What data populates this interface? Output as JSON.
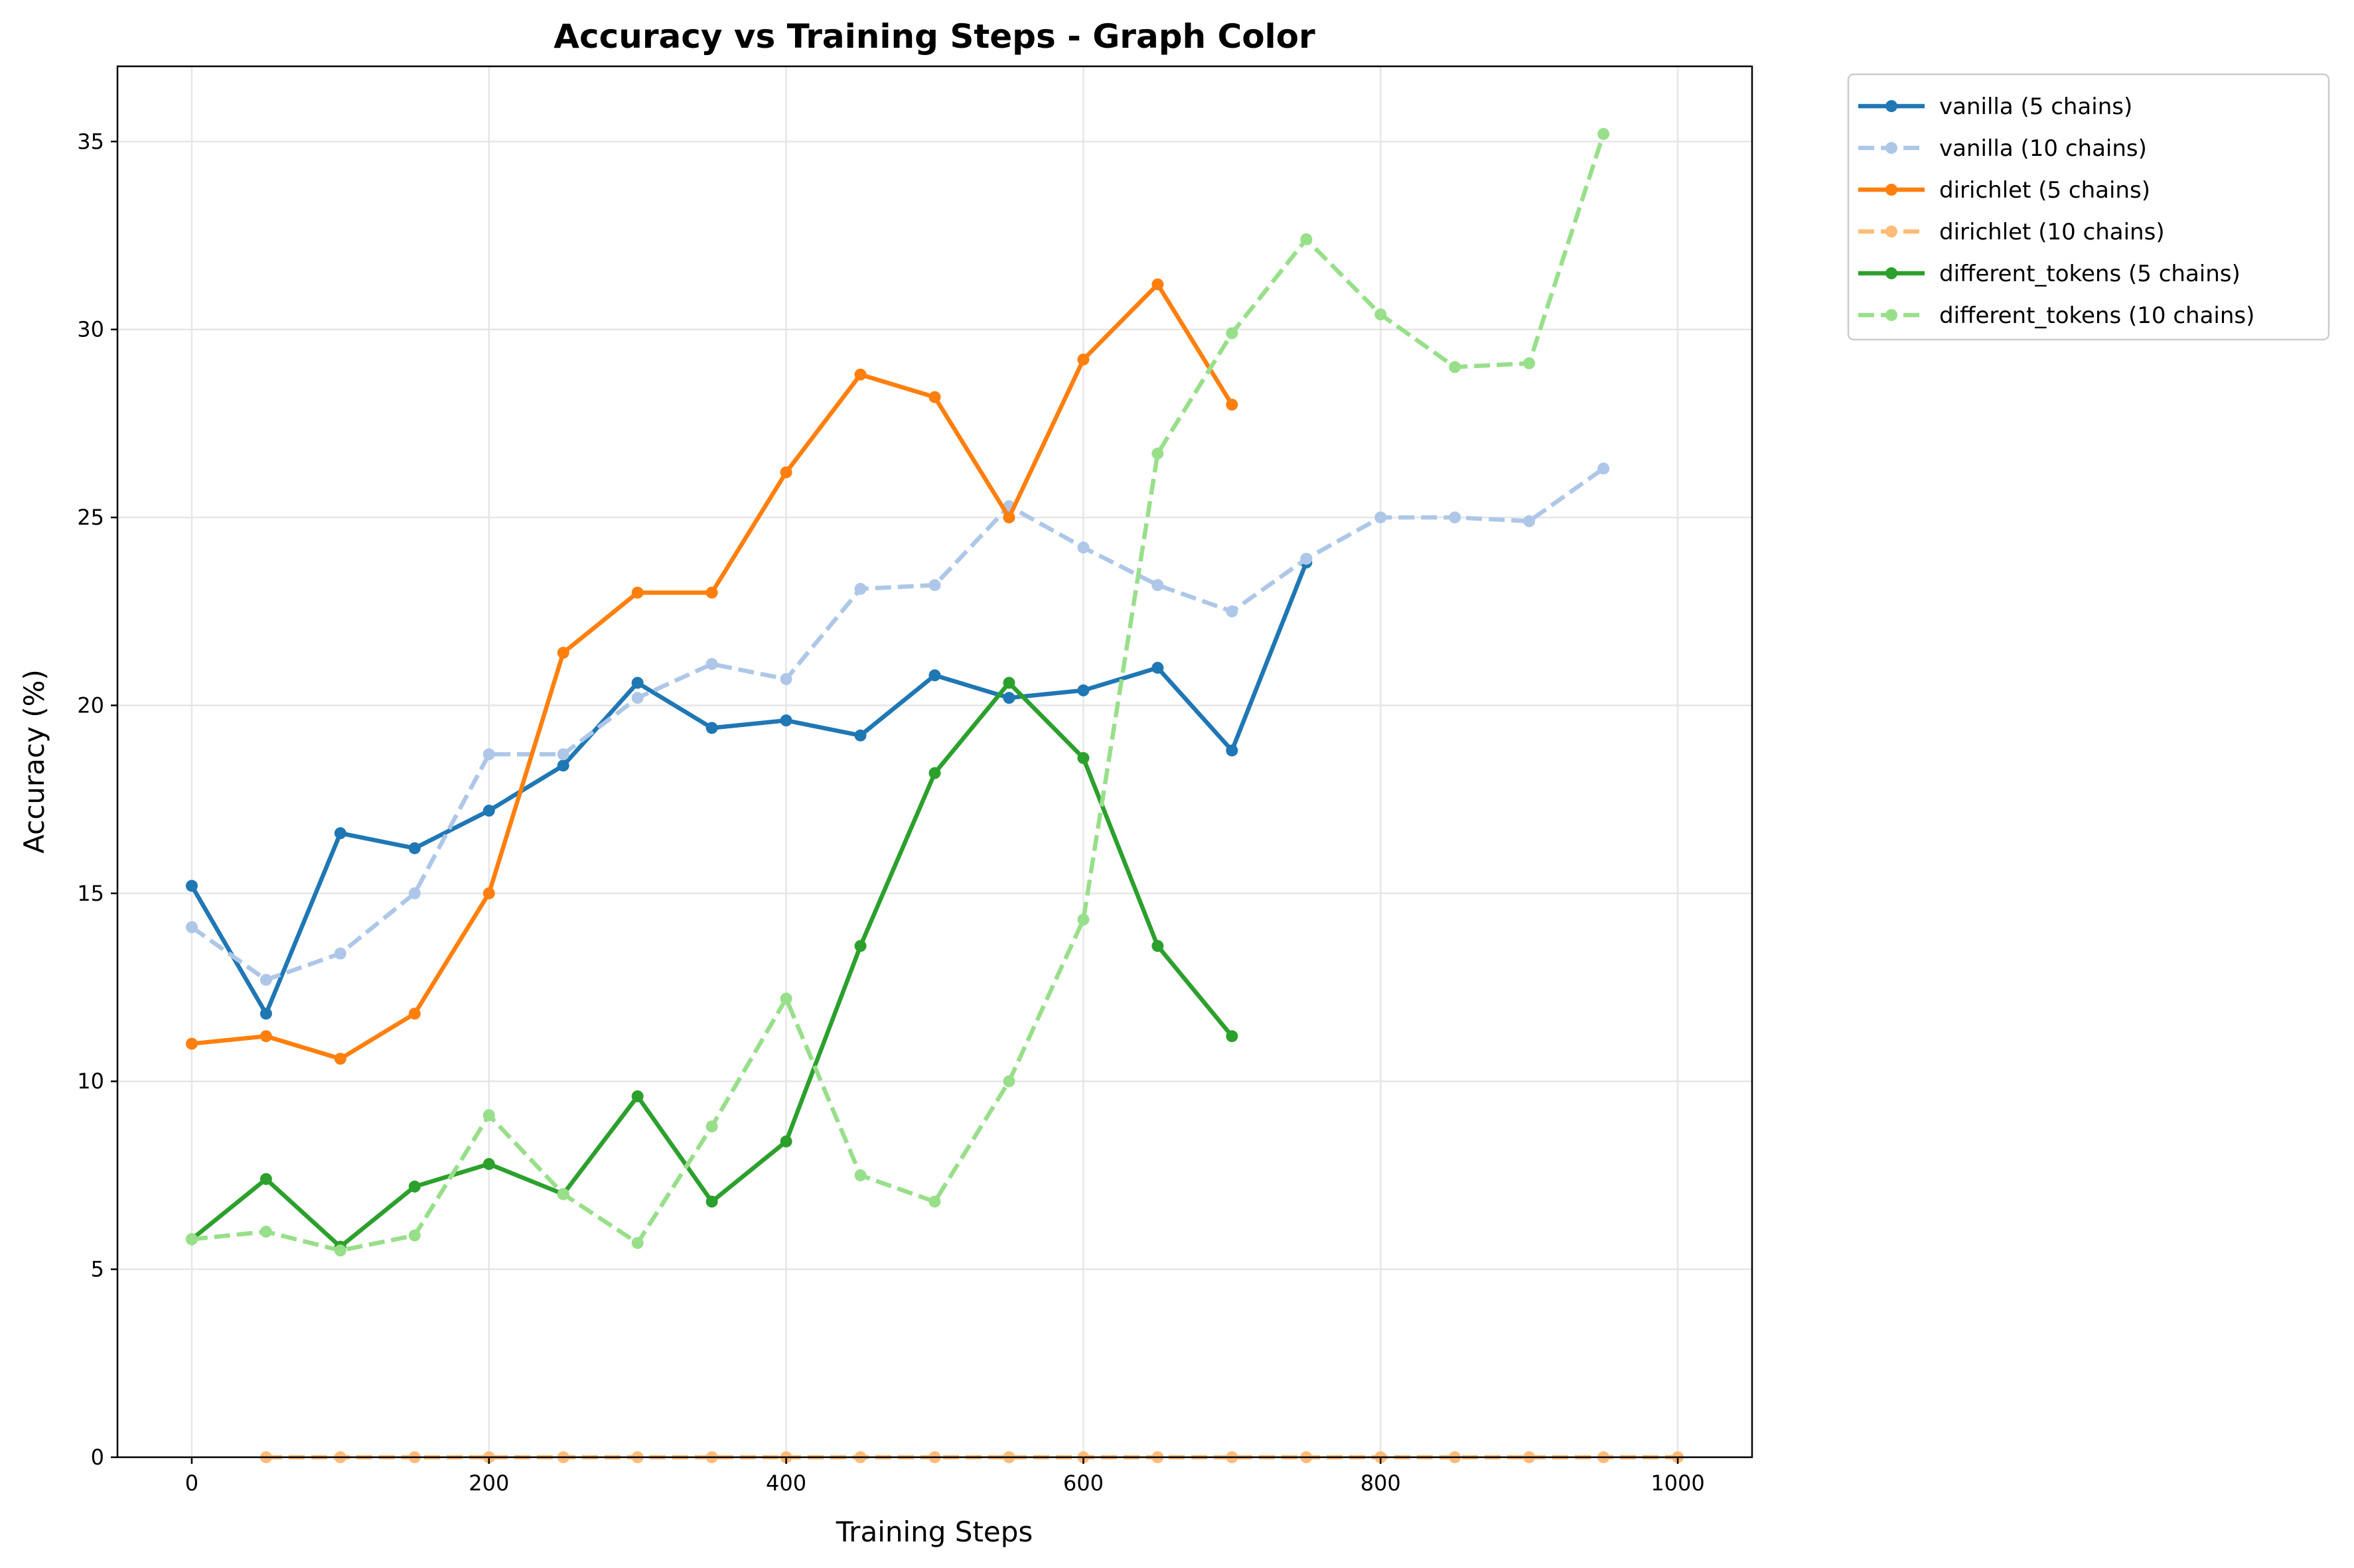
{
  "chart_data": {
    "type": "line",
    "title": "Accuracy vs Training Steps - Graph Color",
    "xlabel": "Training Steps",
    "ylabel": "Accuracy (%)",
    "xlim": [
      -50,
      1050
    ],
    "ylim": [
      0,
      37
    ],
    "xticks": [
      0,
      200,
      400,
      600,
      800,
      1000
    ],
    "yticks": [
      0,
      5,
      10,
      15,
      20,
      25,
      30,
      35
    ],
    "grid": true,
    "legend_position": "outside right, top",
    "series": [
      {
        "name": "vanilla (5 chains)",
        "color": "#1f77b4",
        "dashed": false,
        "x": [
          0,
          50,
          100,
          150,
          200,
          250,
          300,
          350,
          400,
          450,
          500,
          550,
          600,
          650,
          700,
          750
        ],
        "y": [
          15.2,
          11.8,
          16.6,
          16.2,
          17.2,
          18.4,
          20.6,
          19.4,
          19.6,
          19.2,
          20.8,
          20.2,
          20.4,
          21.0,
          18.8,
          23.8
        ]
      },
      {
        "name": "vanilla (10 chains)",
        "color": "#aec7e8",
        "dashed": true,
        "x": [
          0,
          50,
          100,
          150,
          200,
          250,
          300,
          350,
          400,
          450,
          500,
          550,
          600,
          650,
          700,
          750,
          800,
          850,
          900,
          950
        ],
        "y": [
          14.1,
          12.7,
          13.4,
          15.0,
          18.7,
          18.7,
          20.2,
          21.1,
          20.7,
          23.1,
          23.2,
          25.3,
          24.2,
          23.2,
          22.5,
          23.9,
          25.0,
          25.0,
          24.9,
          26.3
        ]
      },
      {
        "name": "dirichlet (5 chains)",
        "color": "#ff7f0e",
        "dashed": false,
        "x": [
          0,
          50,
          100,
          150,
          200,
          250,
          300,
          350,
          400,
          450,
          500,
          550,
          600,
          650,
          700
        ],
        "y": [
          11.0,
          11.2,
          10.6,
          11.8,
          15.0,
          21.4,
          23.0,
          23.0,
          26.2,
          28.8,
          28.2,
          25.0,
          29.2,
          31.2,
          28.0
        ]
      },
      {
        "name": "dirichlet (10 chains)",
        "color": "#ffbb78",
        "dashed": true,
        "x": [
          50,
          100,
          150,
          200,
          250,
          300,
          350,
          400,
          450,
          500,
          550,
          600,
          650,
          700,
          750,
          800,
          850,
          900,
          950,
          1000
        ],
        "y": [
          0,
          0,
          0,
          0,
          0,
          0,
          0,
          0,
          0,
          0,
          0,
          0,
          0,
          0,
          0,
          0,
          0,
          0,
          0,
          0
        ]
      },
      {
        "name": "different_tokens (5 chains)",
        "color": "#2ca02c",
        "dashed": false,
        "x": [
          0,
          50,
          100,
          150,
          200,
          250,
          300,
          350,
          400,
          450,
          500,
          550,
          600,
          650,
          700
        ],
        "y": [
          5.8,
          7.4,
          5.6,
          7.2,
          7.8,
          7.0,
          9.6,
          6.8,
          8.4,
          13.6,
          18.2,
          20.6,
          18.6,
          13.6,
          11.2
        ]
      },
      {
        "name": "different_tokens (10 chains)",
        "color": "#98df8a",
        "dashed": true,
        "x": [
          0,
          50,
          100,
          150,
          200,
          250,
          300,
          350,
          400,
          450,
          500,
          550,
          600,
          650,
          700,
          750,
          800,
          850,
          900,
          950
        ],
        "y": [
          5.8,
          6.0,
          5.5,
          5.9,
          9.1,
          7.0,
          5.7,
          8.8,
          12.2,
          7.5,
          6.8,
          10.0,
          14.3,
          26.7,
          29.9,
          32.4,
          30.4,
          29.0,
          29.1,
          35.2
        ]
      }
    ]
  }
}
